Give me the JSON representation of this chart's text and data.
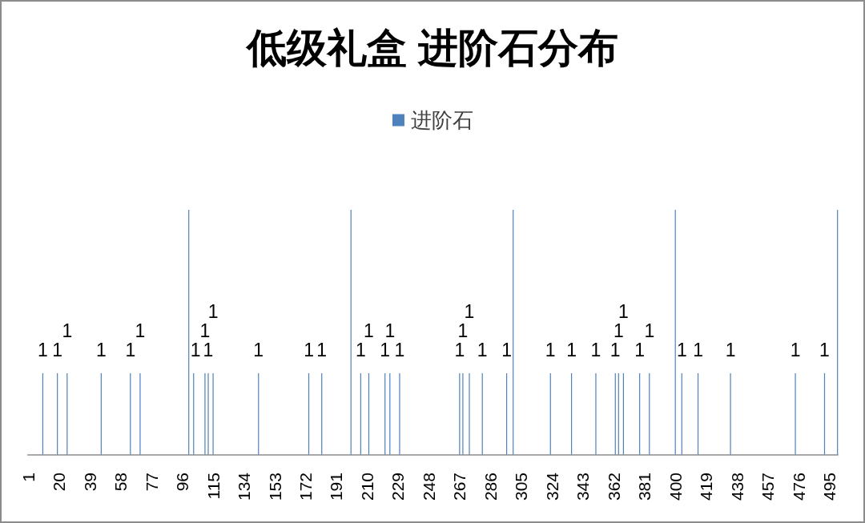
{
  "chart_data": {
    "type": "bar",
    "title": "低级礼盒 进阶石分布",
    "legend": "top",
    "xlim": [
      0.5,
      500.5
    ],
    "xticks": [
      1,
      20,
      39,
      58,
      77,
      96,
      115,
      134,
      153,
      172,
      191,
      210,
      229,
      248,
      267,
      286,
      305,
      324,
      343,
      362,
      381,
      400,
      419,
      438,
      457,
      476,
      495
    ],
    "series": [
      {
        "name": "进阶石",
        "color": "#4f81bd",
        "x": [
          10,
          19,
          25,
          46,
          64,
          70,
          100,
          103,
          110,
          112,
          115,
          143,
          174,
          182,
          200,
          206,
          211,
          221,
          224,
          230,
          267,
          269,
          273,
          281,
          296,
          300,
          323,
          336,
          351,
          363,
          365,
          368,
          378,
          384,
          400,
          404,
          414,
          434,
          474,
          492,
          500
        ],
        "values": [
          1,
          1,
          1,
          1,
          1,
          1,
          3,
          1,
          1,
          1,
          1,
          1,
          1,
          1,
          3,
          1,
          1,
          1,
          1,
          1,
          1,
          1,
          1,
          1,
          1,
          3,
          1,
          1,
          1,
          1,
          1,
          1,
          1,
          1,
          3,
          1,
          1,
          1,
          1,
          1,
          3
        ],
        "value_labels": [
          "1",
          "1",
          "1",
          "1",
          "1",
          "1",
          null,
          "1",
          "1",
          "1",
          "1",
          "1",
          "1",
          "1",
          null,
          "1",
          "1",
          "1",
          "1",
          "1",
          "1",
          "1",
          "1",
          "1",
          "1",
          null,
          "1",
          "1",
          "1",
          "1",
          "1",
          "1",
          "1",
          "1",
          null,
          "1",
          "1",
          "1",
          "1",
          "1",
          null
        ]
      }
    ]
  }
}
